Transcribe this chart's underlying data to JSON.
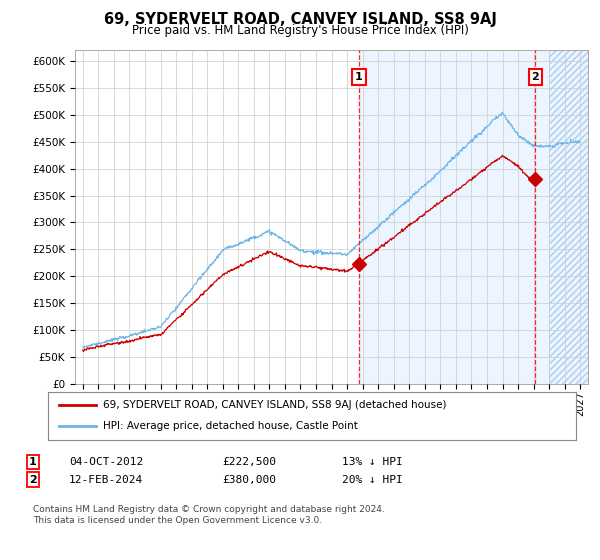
{
  "title": "69, SYDERVELT ROAD, CANVEY ISLAND, SS8 9AJ",
  "subtitle": "Price paid vs. HM Land Registry's House Price Index (HPI)",
  "legend_line1": "69, SYDERVELT ROAD, CANVEY ISLAND, SS8 9AJ (detached house)",
  "legend_line2": "HPI: Average price, detached house, Castle Point",
  "transaction1_date": "04-OCT-2012",
  "transaction1_price": "£222,500",
  "transaction1_hpi": "13% ↓ HPI",
  "transaction1_year": 2012.77,
  "transaction1_value": 222500,
  "transaction2_date": "12-FEB-2024",
  "transaction2_price": "£380,000",
  "transaction2_hpi": "20% ↓ HPI",
  "transaction2_year": 2024.12,
  "transaction2_value": 380000,
  "footer": "Contains HM Land Registry data © Crown copyright and database right 2024.\nThis data is licensed under the Open Government Licence v3.0.",
  "hpi_color": "#6ab4e8",
  "price_color": "#cc0000",
  "marker_color": "#cc0000",
  "background_color": "#ffffff",
  "grid_color": "#cccccc",
  "shade_color": "#ddeeff",
  "ylim_min": 0,
  "ylim_max": 620000,
  "yticks": [
    0,
    50000,
    100000,
    150000,
    200000,
    250000,
    300000,
    350000,
    400000,
    450000,
    500000,
    550000,
    600000
  ],
  "xlim_start": 1994.5,
  "xlim_end": 2027.5,
  "shade_start": 2012.77,
  "hatch_start": 2025.0
}
